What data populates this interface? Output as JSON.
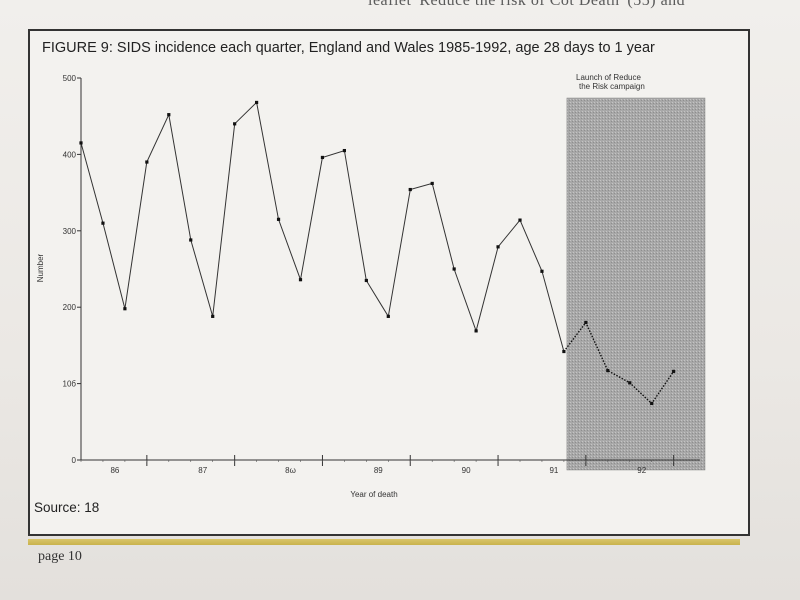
{
  "page": {
    "top_text": "leaflet 'Reduce the risk of Cot Death' (55) and",
    "source": "Source: 18",
    "page_number": "page 10"
  },
  "chart_data": {
    "type": "line",
    "title": "FIGURE 9: SIDS incidence each quarter, England and Wales 1985-1992, age 28 days to 1 year",
    "xlabel": "Year of death",
    "ylabel": "Number",
    "ylim": [
      0,
      500
    ],
    "y_ticks": [
      0,
      100,
      200,
      300,
      400,
      500
    ],
    "y_tick_labels": [
      "0",
      "10б",
      "200",
      "300",
      "400",
      "500"
    ],
    "year_labels": [
      "86",
      "87",
      "8ω",
      "89",
      "90",
      "91",
      "92"
    ],
    "values": [
      415,
      310,
      198,
      390,
      452,
      288,
      188,
      440,
      468,
      315,
      236,
      396,
      405,
      235,
      188,
      354,
      362,
      250,
      169,
      279,
      314,
      247,
      142,
      180,
      117,
      101,
      74,
      116
    ],
    "shaded_region": {
      "start_index": 22,
      "label_line1": "Launch of Reduce",
      "label_line2": "the Risk campaign"
    },
    "colors": {
      "line": "#333333",
      "shade": "#a9a9a9"
    }
  }
}
